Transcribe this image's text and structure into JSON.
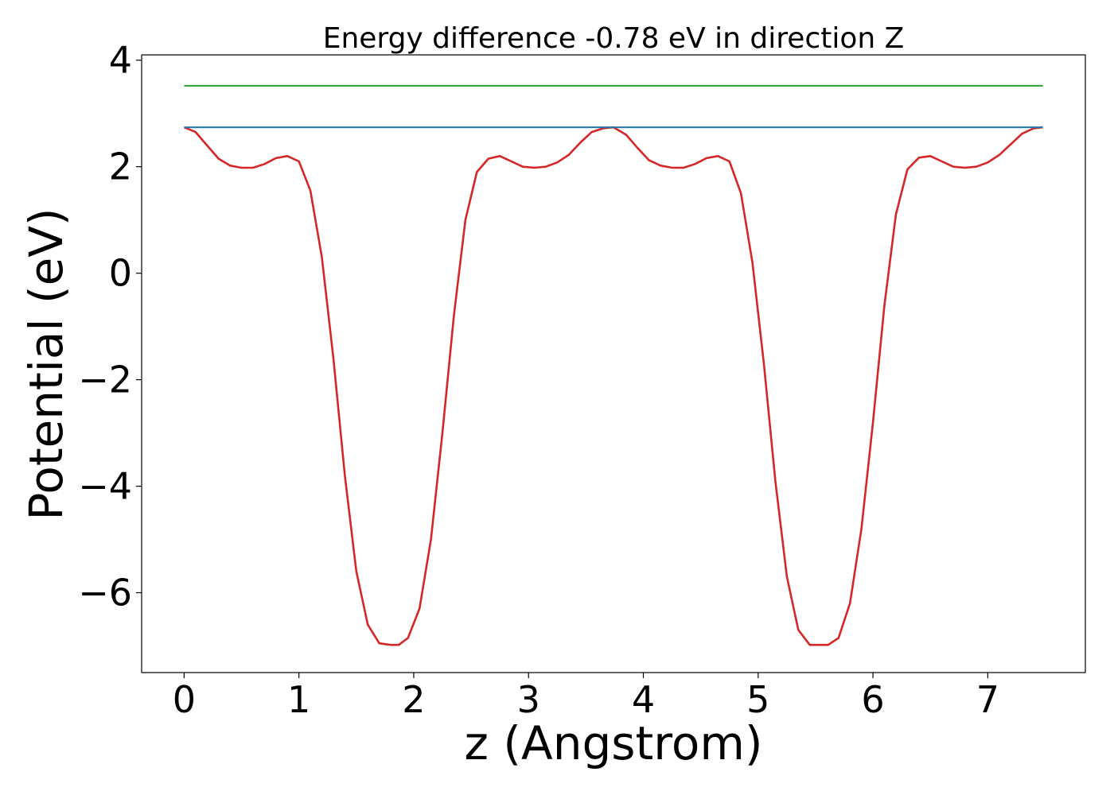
{
  "chart_data": {
    "type": "line",
    "title": "Energy difference -0.78 eV in direction Z",
    "xlabel": "z (Angstrom)",
    "ylabel": "Potential (eV)",
    "xlim": [
      -0.37,
      7.85
    ],
    "ylim": [
      -7.5,
      4.1
    ],
    "xticks": [
      0,
      1,
      2,
      3,
      4,
      5,
      6,
      7
    ],
    "yticks": [
      -6,
      -4,
      -2,
      0,
      2,
      4
    ],
    "xtick_labels": [
      "0",
      "1",
      "2",
      "3",
      "4",
      "5",
      "6",
      "7"
    ],
    "ytick_labels": [
      "−6",
      "−4",
      "−2",
      "0",
      "2",
      "4"
    ],
    "grid": false,
    "legend": "none",
    "series": [
      {
        "color": "#d62728",
        "x": [
          0.0,
          0.1,
          0.2,
          0.3,
          0.4,
          0.5,
          0.6,
          0.7,
          0.8,
          0.9,
          1.0,
          1.1,
          1.2,
          1.3,
          1.4,
          1.5,
          1.6,
          1.7,
          1.8,
          1.87,
          1.95,
          2.05,
          2.15,
          2.25,
          2.35,
          2.45,
          2.55,
          2.65,
          2.75,
          2.85,
          2.95,
          3.05,
          3.15,
          3.25,
          3.35,
          3.45,
          3.55,
          3.65,
          3.74,
          3.85,
          3.95,
          4.05,
          4.15,
          4.25,
          4.35,
          4.45,
          4.55,
          4.65,
          4.75,
          4.85,
          4.95,
          5.05,
          5.15,
          5.25,
          5.35,
          5.45,
          5.55,
          5.61,
          5.7,
          5.8,
          5.9,
          6.0,
          6.1,
          6.2,
          6.3,
          6.4,
          6.5,
          6.6,
          6.7,
          6.8,
          6.9,
          7.0,
          7.1,
          7.2,
          7.3,
          7.4,
          7.48
        ],
        "y": [
          2.74,
          2.65,
          2.4,
          2.15,
          2.02,
          1.98,
          1.98,
          2.05,
          2.16,
          2.2,
          2.1,
          1.55,
          0.3,
          -1.6,
          -3.8,
          -5.6,
          -6.6,
          -6.95,
          -6.98,
          -6.98,
          -6.85,
          -6.3,
          -5.0,
          -3.0,
          -0.8,
          1.0,
          1.9,
          2.15,
          2.2,
          2.1,
          2.0,
          1.98,
          2.0,
          2.08,
          2.22,
          2.45,
          2.65,
          2.72,
          2.74,
          2.6,
          2.35,
          2.12,
          2.02,
          1.98,
          1.98,
          2.05,
          2.16,
          2.2,
          2.1,
          1.5,
          0.2,
          -1.7,
          -3.9,
          -5.7,
          -6.7,
          -6.98,
          -6.98,
          -6.98,
          -6.85,
          -6.2,
          -4.8,
          -2.8,
          -0.6,
          1.1,
          1.95,
          2.17,
          2.2,
          2.1,
          2.0,
          1.98,
          2.0,
          2.08,
          2.22,
          2.42,
          2.62,
          2.72,
          2.74
        ]
      },
      {
        "color": "#1f77b4",
        "x": [
          0.0,
          7.48
        ],
        "y": [
          2.74,
          2.74
        ]
      },
      {
        "color": "#2ca02c",
        "x": [
          0.0,
          7.48
        ],
        "y": [
          3.52,
          3.52
        ]
      }
    ]
  }
}
